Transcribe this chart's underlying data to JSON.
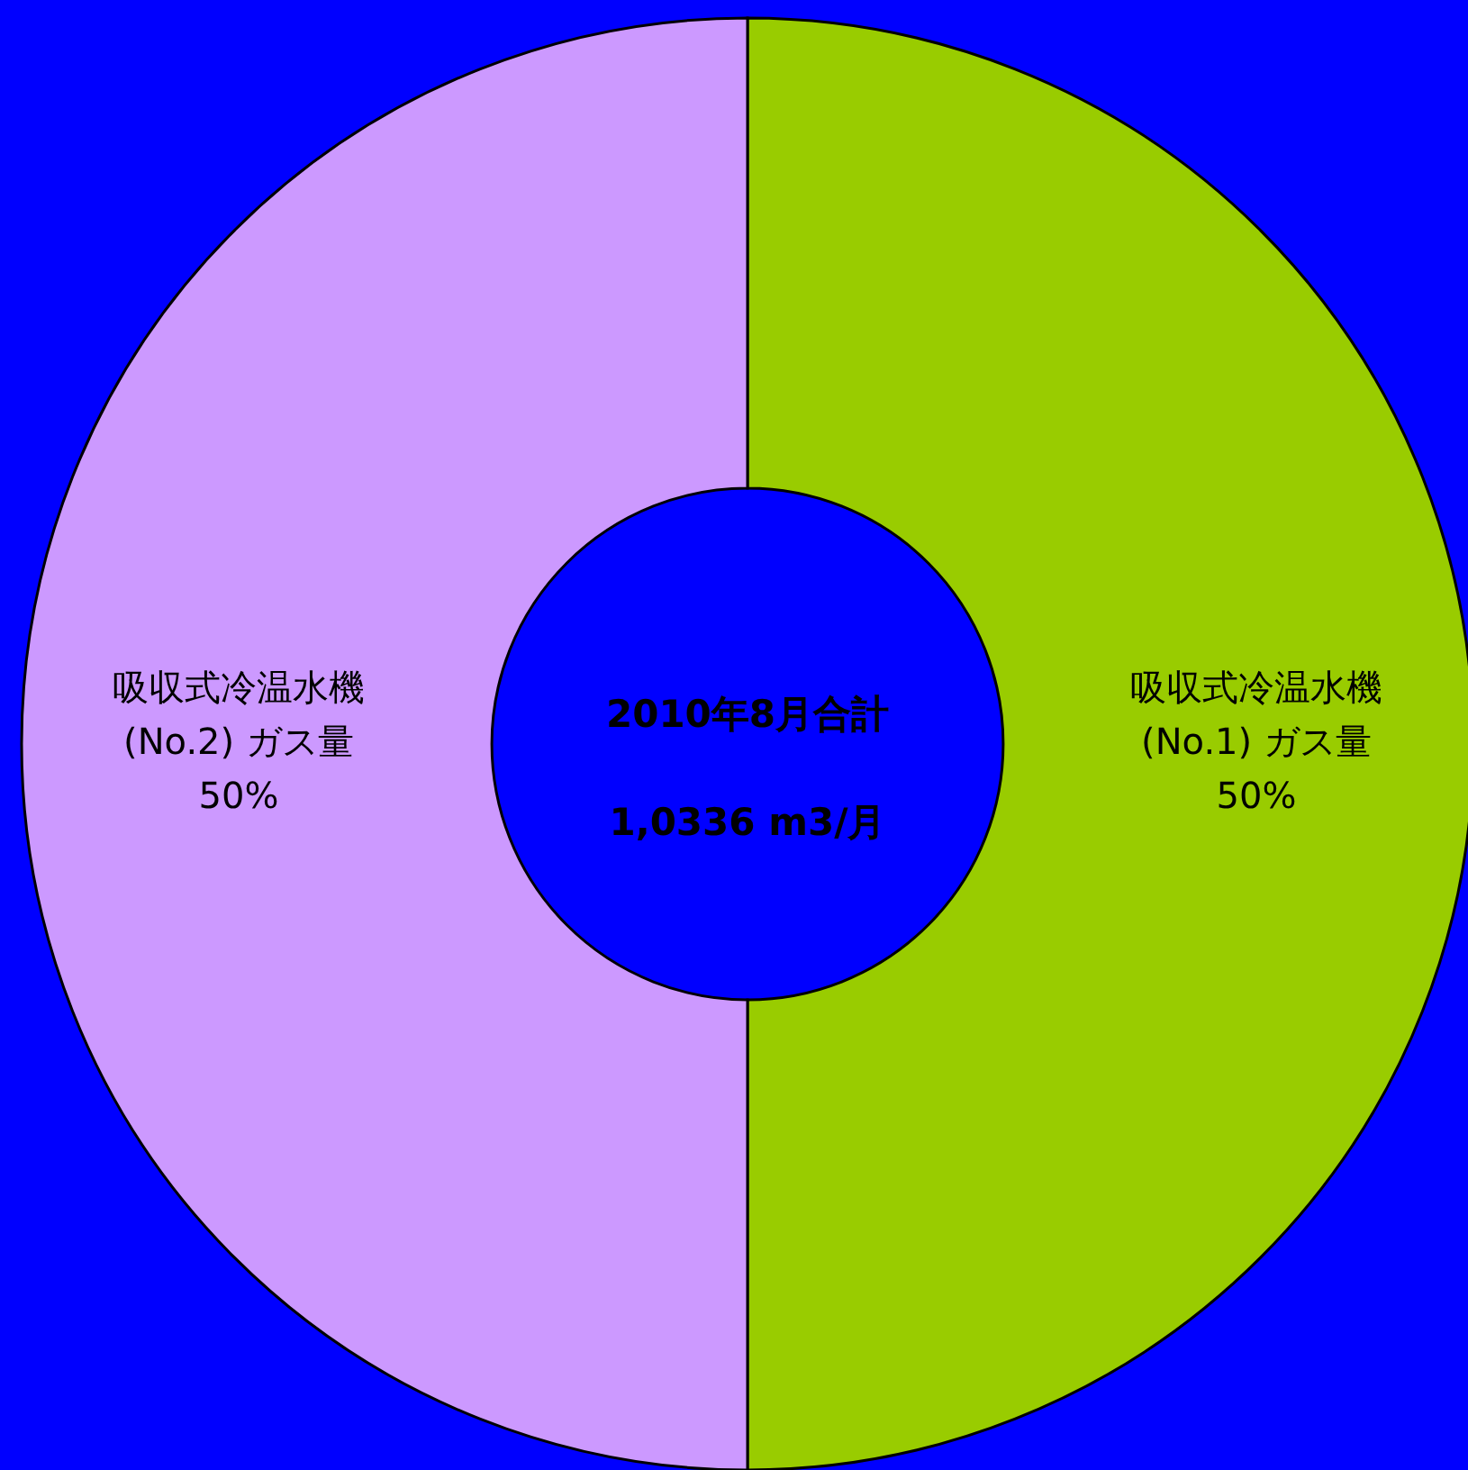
{
  "chart_data": {
    "type": "donut",
    "title": "2010年8月合計",
    "categories": [
      "吸収式冷温水機 (No.1) ガス量",
      "吸収式冷温水機 (No.2) ガス量"
    ],
    "values": [
      50,
      50
    ],
    "colors": [
      "#99cc00",
      "#cc99ff"
    ],
    "value_labels": [
      "50%",
      "50%"
    ],
    "annotations": [
      "1,0336 m3/月"
    ]
  }
}
